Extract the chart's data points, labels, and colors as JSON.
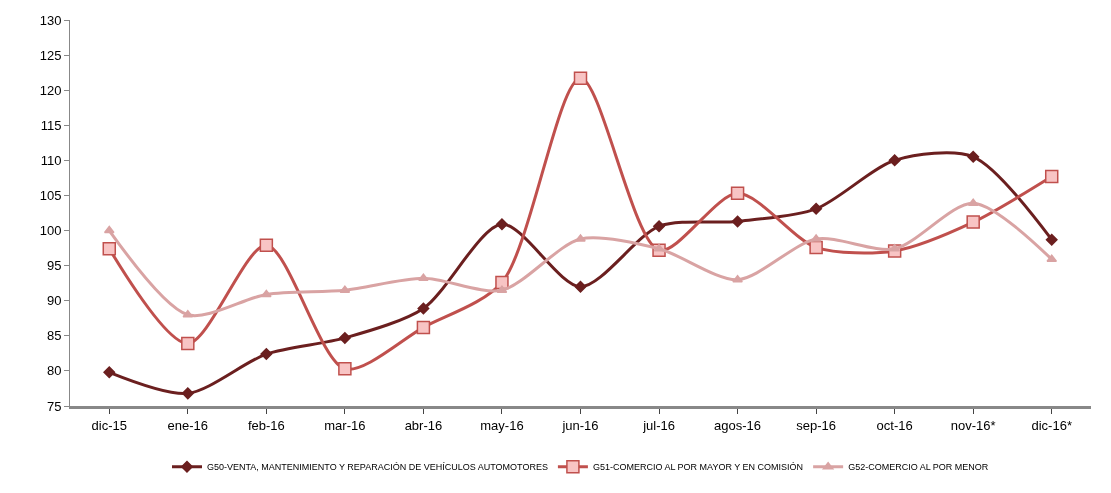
{
  "chart_data": {
    "type": "line",
    "categories": [
      "dic-15",
      "ene-16",
      "feb-16",
      "mar-16",
      "abr-16",
      "may-16",
      "jun-16",
      "jul-16",
      "agos-16",
      "sep-16",
      "oct-16",
      "nov-16*",
      "dic-16*"
    ],
    "series": [
      {
        "name": "G50-VENTA, MANTENIMIENTO Y REPARACIÓN DE VEHÍCULOS AUTOMOTORES",
        "color": "#6b1f1f",
        "marker": "diamond",
        "values": [
          79.8,
          76.8,
          82.4,
          84.7,
          88.9,
          100.9,
          92.0,
          100.6,
          101.3,
          103.1,
          110.0,
          110.5,
          98.7
        ]
      },
      {
        "name": "G51-COMERCIO AL POR MAYOR Y EN COMISIÓN",
        "color": "#c0504d",
        "marker": "square",
        "values": [
          97.4,
          83.9,
          97.9,
          80.3,
          86.2,
          92.6,
          121.7,
          97.2,
          105.3,
          97.6,
          97.1,
          101.2,
          107.7
        ]
      },
      {
        "name": "G52-COMERCIO AL POR MENOR",
        "color": "#d9a3a3",
        "marker": "triangle",
        "values": [
          100.0,
          88.0,
          90.9,
          91.5,
          93.2,
          91.5,
          98.8,
          97.4,
          93.0,
          98.8,
          97.4,
          103.9,
          95.9
        ]
      }
    ],
    "ylim": [
      75,
      130
    ],
    "yticks": [
      75,
      80,
      85,
      90,
      95,
      100,
      105,
      110,
      115,
      120,
      125,
      130
    ],
    "legend": "bottom",
    "line_style": "solid"
  }
}
